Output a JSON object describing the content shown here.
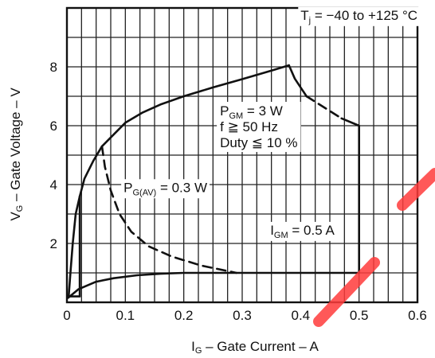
{
  "chart_data": {
    "type": "line",
    "title": "",
    "xlabel_parts": [
      "I",
      "G",
      " – Gate Current – A"
    ],
    "ylabel_parts": [
      "V",
      "G",
      " – Gate Voltage – V"
    ],
    "xlim": [
      0,
      0.6
    ],
    "ylim": [
      0,
      10
    ],
    "x_ticks": [
      0,
      0.1,
      0.2,
      0.3,
      0.4,
      0.5,
      0.6
    ],
    "x_tick_labels": [
      "0",
      "0.1",
      "0.2",
      "0.3",
      "0.4",
      "0.5",
      "0.6"
    ],
    "y_ticks": [
      2,
      4,
      6,
      8
    ],
    "y_tick_labels": [
      "2",
      "4",
      "6",
      "8"
    ],
    "grid": true,
    "series": [
      {
        "style": "solid",
        "points": [
          [
            0.003,
            0.2
          ],
          [
            0.006,
            1.0
          ],
          [
            0.01,
            2.0
          ],
          [
            0.015,
            3.0
          ],
          [
            0.022,
            3.6
          ],
          [
            0.03,
            4.2
          ],
          [
            0.045,
            4.8
          ],
          [
            0.06,
            5.3
          ],
          [
            0.08,
            5.7
          ],
          [
            0.1,
            6.1
          ],
          [
            0.13,
            6.45
          ],
          [
            0.16,
            6.72
          ],
          [
            0.2,
            7.0
          ],
          [
            0.25,
            7.3
          ],
          [
            0.3,
            7.58
          ],
          [
            0.35,
            7.87
          ],
          [
            0.38,
            8.05
          ]
        ]
      },
      {
        "style": "solid",
        "points": [
          [
            0.38,
            8.05
          ],
          [
            0.39,
            7.6
          ],
          [
            0.41,
            7.0
          ]
        ]
      },
      {
        "style": "dashed",
        "points": [
          [
            0.41,
            7.0
          ],
          [
            0.43,
            6.75
          ],
          [
            0.45,
            6.5
          ],
          [
            0.47,
            6.25
          ]
        ]
      },
      {
        "style": "solid",
        "points": [
          [
            0.47,
            6.25
          ],
          [
            0.5,
            6.0
          ],
          [
            0.5,
            1.0
          ]
        ]
      },
      {
        "style": "dashed",
        "points": [
          [
            0.06,
            5.3
          ],
          [
            0.065,
            4.6
          ],
          [
            0.075,
            3.8
          ],
          [
            0.09,
            3.0
          ],
          [
            0.11,
            2.4
          ],
          [
            0.14,
            1.9
          ],
          [
            0.18,
            1.55
          ],
          [
            0.23,
            1.25
          ],
          [
            0.29,
            1.0
          ]
        ]
      },
      {
        "style": "solid",
        "points": [
          [
            0.002,
            0.15
          ],
          [
            0.02,
            0.45
          ],
          [
            0.05,
            0.7
          ],
          [
            0.08,
            0.82
          ],
          [
            0.12,
            0.92
          ],
          [
            0.16,
            0.97
          ],
          [
            0.2,
            1.0
          ],
          [
            0.3,
            1.0
          ],
          [
            0.4,
            1.0
          ],
          [
            0.5,
            1.0
          ]
        ]
      },
      {
        "style": "solid",
        "points": [
          [
            0.003,
            0.2
          ],
          [
            0.022,
            0.2
          ],
          [
            0.022,
            3.6
          ]
        ]
      }
    ],
    "annotations": {
      "temp": {
        "parts": [
          "T",
          "j",
          " = −40 to +125 °C"
        ],
        "x": 0.5,
        "y": 9.6
      },
      "pgm": {
        "line1_parts": [
          "P",
          "GM",
          " = 3 W"
        ],
        "line2": "f ≧ 50 Hz",
        "line3": "Duty ≦ 10 %",
        "x": 0.262,
        "y": 6.35
      },
      "pgav": {
        "parts": [
          "P",
          "G(AV)",
          " = 0.3 W"
        ],
        "x": 0.097,
        "y": 3.75
      },
      "igm": {
        "parts": [
          "I",
          "GM",
          " = 0.5 A"
        ],
        "x": 0.348,
        "y": 2.3
      }
    }
  },
  "colors": {
    "line": "#111111",
    "watermark": "#ff3b3b"
  }
}
